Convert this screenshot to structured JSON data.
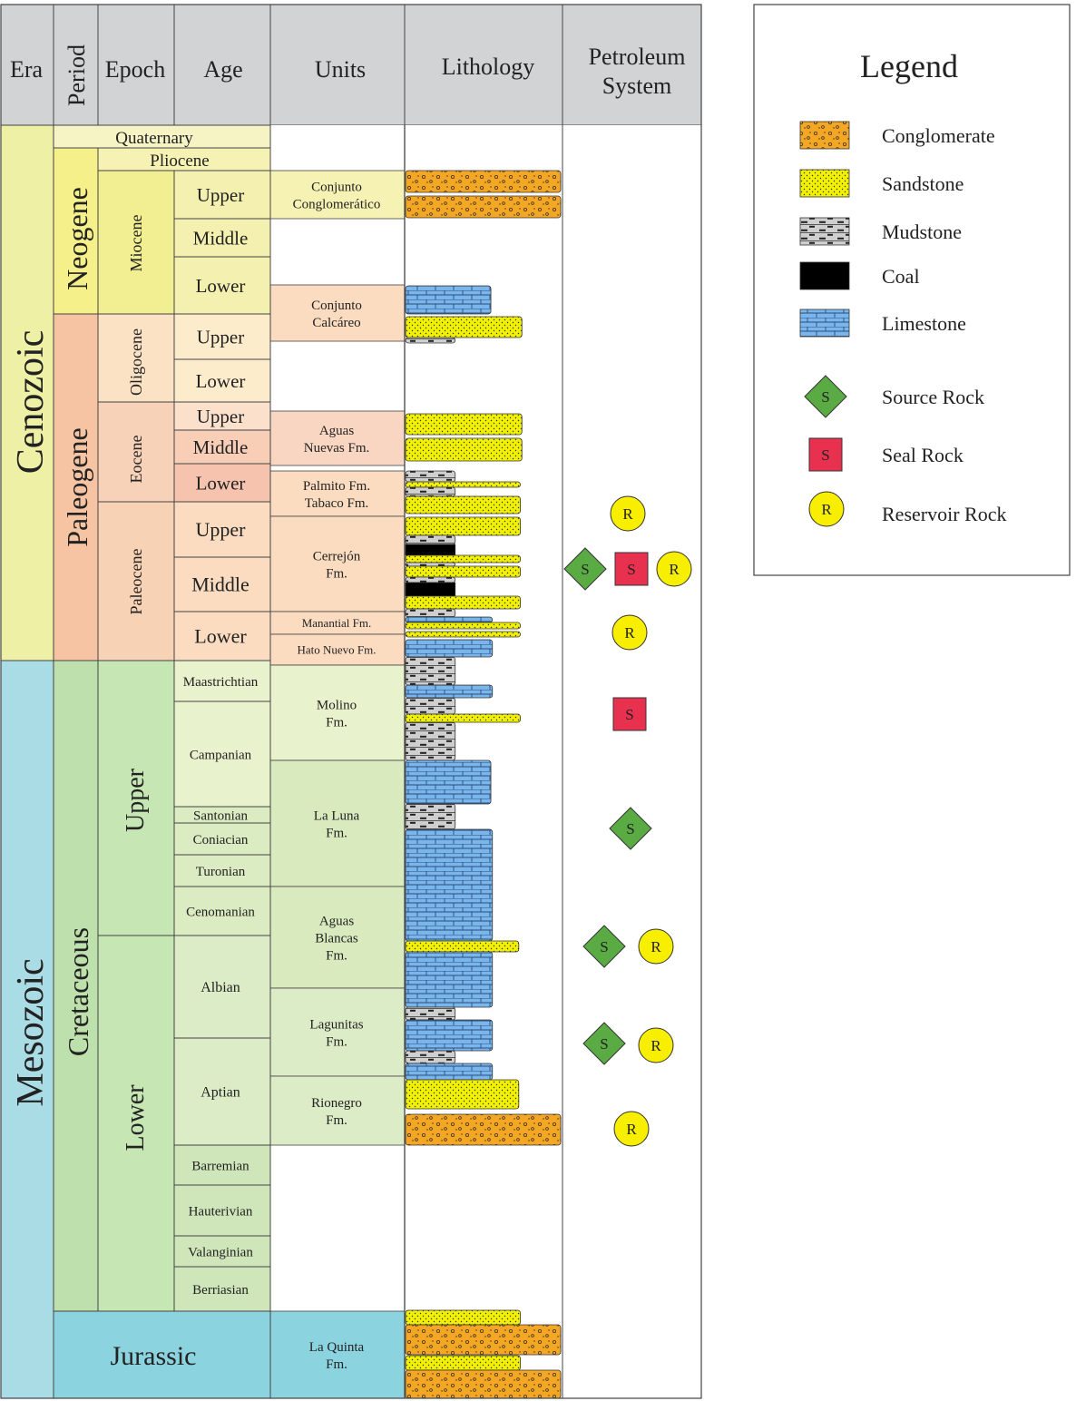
{
  "headers": {
    "era": "Era",
    "period": "Period",
    "epoch": "Epoch",
    "age": "Age",
    "units": "Units",
    "lithology": "Lithology",
    "petroleum_system": [
      "Petroleum",
      "System"
    ]
  },
  "eras": [
    {
      "name": "Cenozoic",
      "color": "#eef0a6"
    },
    {
      "name": "Mesozoic",
      "color": "#a9dce4"
    }
  ],
  "periods": [
    {
      "name": "Quaternary",
      "color": "#f6f4c4"
    },
    {
      "name": "Neogene",
      "color": "#f6f08a"
    },
    {
      "name": "Paleogene",
      "color": "#f6c4a2"
    },
    {
      "name": "Cretaceous",
      "color": "#bde0ac"
    },
    {
      "name": "Jurassic",
      "color": "#8bd3de"
    }
  ],
  "epochs": [
    {
      "name": "Pliocene",
      "color": "#f6f2b4"
    },
    {
      "name": "Miocene",
      "color": "#f2ee92"
    },
    {
      "name": "Oligocene",
      "color": "#fbe2c4"
    },
    {
      "name": "Eocene",
      "color": "#f7d2b8"
    },
    {
      "name": "Paleocene",
      "color": "#f8d2b4"
    },
    {
      "name": "Upper",
      "color": "#c6e6b4"
    },
    {
      "name": "Lower",
      "color": "#c6e6b4"
    }
  ],
  "ages": [
    {
      "name": "Upper",
      "color": "#f4f0b0"
    },
    {
      "name": "Middle",
      "color": "#f4f0b0"
    },
    {
      "name": "Lower",
      "color": "#f4f0b0"
    },
    {
      "name": "Upper",
      "color": "#fdeccc"
    },
    {
      "name": "Lower",
      "color": "#fdeccc"
    },
    {
      "name": "Upper",
      "color": "#fbe0cc"
    },
    {
      "name": "Middle",
      "color": "#f8cfb6"
    },
    {
      "name": "Lower",
      "color": "#f6c4ae"
    },
    {
      "name": "Upper",
      "color": "#fbdcc0"
    },
    {
      "name": "Middle",
      "color": "#fbdcc0"
    },
    {
      "name": "Lower",
      "color": "#fbdcc0"
    },
    {
      "name": "Maastrichtian",
      "color": "#e8f2cc"
    },
    {
      "name": "Campanian",
      "color": "#e8f2cc"
    },
    {
      "name": "Santonian",
      "color": "#dcecc2"
    },
    {
      "name": "Coniacian",
      "color": "#dcecc2"
    },
    {
      "name": "Turonian",
      "color": "#dcecc2"
    },
    {
      "name": "Cenomanian",
      "color": "#dcecc2"
    },
    {
      "name": "Albian",
      "color": "#dcecc6"
    },
    {
      "name": "Aptian",
      "color": "#dcecc6"
    },
    {
      "name": "Barremian",
      "color": "#cfe6ba"
    },
    {
      "name": "Hauterivian",
      "color": "#cfe6ba"
    },
    {
      "name": "Valanginian",
      "color": "#cfe6ba"
    },
    {
      "name": "Berriasian",
      "color": "#cfe6ba"
    }
  ],
  "units": [
    {
      "name": [
        "Conjunto",
        "Conglomerático"
      ],
      "color": "#f6f2b4"
    },
    {
      "name": [
        "Conjunto",
        "Calcáreo"
      ],
      "color": "#fbdcc0"
    },
    {
      "name": [
        "Aguas",
        "Nuevas Fm."
      ],
      "color": "#f8d6c2"
    },
    {
      "name": [
        "Palmito Fm.",
        "Tabaco Fm."
      ],
      "color": "#fbdcc0"
    },
    {
      "name": [
        "Cerrejón",
        "Fm."
      ],
      "color": "#fbdcc0"
    },
    {
      "name": [
        "Manantial Fm."
      ],
      "color": "#fbdcc0"
    },
    {
      "name": [
        "Hato Nuevo Fm."
      ],
      "color": "#fbdcc0"
    },
    {
      "name": [
        "Molino",
        "Fm."
      ],
      "color": "#e8f2cc"
    },
    {
      "name": [
        "La Luna",
        "Fm."
      ],
      "color": "#d8eabe"
    },
    {
      "name": [
        "Aguas",
        "Blancas",
        "Fm."
      ],
      "color": "#d8eabe"
    },
    {
      "name": [
        "Lagunitas",
        "Fm."
      ],
      "color": "#dcecc6"
    },
    {
      "name": [
        "Rionegro",
        "Fm."
      ],
      "color": "#dcecc6"
    },
    {
      "name": [
        "La Quinta",
        "Fm."
      ],
      "color": "#8bd3de"
    }
  ],
  "lithology_colors": {
    "conglomerate": "#f5a623",
    "sandstone": "#f0f000",
    "mudstone": "#cccccc",
    "coal": "#000000",
    "limestone": "#7ab6ec"
  },
  "lithology_beds": [
    {
      "type": "conglomerate",
      "extent": 1.0
    },
    {
      "type": "conglomerate",
      "extent": 1.0
    },
    {
      "type": "limestone",
      "extent": 0.55
    },
    {
      "type": "sandstone",
      "extent": 0.75
    },
    {
      "type": "mudstone",
      "extent": 0.35
    },
    {
      "type": "sandstone",
      "extent": 0.75
    },
    {
      "type": "sandstone",
      "extent": 0.75
    },
    {
      "type": "mudstone",
      "extent": 0.35
    },
    {
      "type": "sandstone",
      "extent": 0.75
    },
    {
      "type": "sandstone",
      "extent": 0.74
    },
    {
      "type": "coal",
      "extent": 0.35
    },
    {
      "type": "sandstone",
      "extent": 0.74
    },
    {
      "type": "sandstone",
      "extent": 0.74
    },
    {
      "type": "coal",
      "extent": 0.35
    },
    {
      "type": "sandstone",
      "extent": 0.74
    },
    {
      "type": "limestone",
      "extent": 0.55
    },
    {
      "type": "mudstone",
      "extent": 0.35
    },
    {
      "type": "limestone",
      "extent": 0.55
    },
    {
      "type": "mudstone",
      "extent": 0.35
    },
    {
      "type": "limestone",
      "extent": 0.55
    },
    {
      "type": "mudstone",
      "extent": 0.35
    },
    {
      "type": "limestone",
      "extent": 0.56
    },
    {
      "type": "sandstone",
      "extent": 0.73
    },
    {
      "type": "limestone",
      "extent": 0.56
    },
    {
      "type": "mudstone",
      "extent": 0.35
    },
    {
      "type": "limestone",
      "extent": 0.56
    },
    {
      "type": "mudstone",
      "extent": 0.35
    },
    {
      "type": "limestone",
      "extent": 0.56
    },
    {
      "type": "sandstone",
      "extent": 0.73
    },
    {
      "type": "conglomerate",
      "extent": 1.0
    },
    {
      "type": "sandstone",
      "extent": 0.74
    },
    {
      "type": "conglomerate",
      "extent": 1.0
    },
    {
      "type": "sandstone",
      "extent": 0.74
    },
    {
      "type": "conglomerate",
      "extent": 1.0
    }
  ],
  "petroleum_markers": [
    {
      "type": "reservoir",
      "label": "R"
    },
    {
      "type": "source",
      "label": "S"
    },
    {
      "type": "seal",
      "label": "S"
    },
    {
      "type": "reservoir",
      "label": "R"
    },
    {
      "type": "reservoir",
      "label": "R"
    },
    {
      "type": "seal",
      "label": "S"
    },
    {
      "type": "source",
      "label": "S"
    },
    {
      "type": "source",
      "label": "S"
    },
    {
      "type": "reservoir",
      "label": "R"
    },
    {
      "type": "source",
      "label": "S"
    },
    {
      "type": "reservoir",
      "label": "R"
    },
    {
      "type": "reservoir",
      "label": "R"
    }
  ],
  "marker_colors": {
    "source": "#5bab45",
    "seal": "#e8304f",
    "reservoir": "#f8ee00"
  },
  "legend": {
    "title": "Legend",
    "items": [
      {
        "label": "Conglomerate",
        "kind": "conglomerate"
      },
      {
        "label": "Sandstone",
        "kind": "sandstone"
      },
      {
        "label": "Mudstone",
        "kind": "mudstone"
      },
      {
        "label": "Coal",
        "kind": "coal"
      },
      {
        "label": "Limestone",
        "kind": "limestone"
      },
      {
        "label": "Source Rock",
        "kind": "source",
        "symbol": "S"
      },
      {
        "label": "Seal Rock",
        "kind": "seal",
        "symbol": "S"
      },
      {
        "label": "Reservoir Rock",
        "kind": "reservoir",
        "symbol": "R"
      }
    ]
  }
}
